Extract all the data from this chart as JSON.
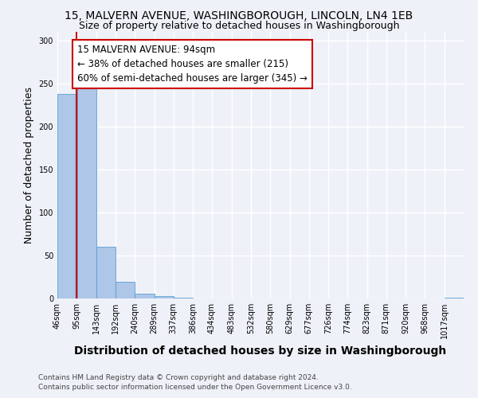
{
  "title": "15, MALVERN AVENUE, WASHINGBOROUGH, LINCOLN, LN4 1EB",
  "subtitle": "Size of property relative to detached houses in Washingborough",
  "xlabel": "Distribution of detached houses by size in Washingborough",
  "ylabel": "Number of detached properties",
  "bar_values": [
    238,
    244,
    60,
    19,
    6,
    3,
    1,
    0,
    0,
    0,
    0,
    0,
    0,
    0,
    0,
    0,
    0,
    0,
    0,
    0,
    1
  ],
  "bin_labels": [
    "46sqm",
    "95sqm",
    "143sqm",
    "192sqm",
    "240sqm",
    "289sqm",
    "337sqm",
    "386sqm",
    "434sqm",
    "483sqm",
    "532sqm",
    "580sqm",
    "629sqm",
    "677sqm",
    "726sqm",
    "774sqm",
    "823sqm",
    "871sqm",
    "920sqm",
    "968sqm",
    "1017sqm"
  ],
  "bin_edges": [
    46,
    95,
    143,
    192,
    240,
    289,
    337,
    386,
    434,
    483,
    532,
    580,
    629,
    677,
    726,
    774,
    823,
    871,
    920,
    968,
    1017,
    1066
  ],
  "property_size": 94,
  "bar_color": "#aec6e8",
  "bar_edge_color": "#5a9fd4",
  "red_line_x": 94,
  "annotation_line1": "15 MALVERN AVENUE: 94sqm",
  "annotation_line2": "← 38% of detached houses are smaller (215)",
  "annotation_line3": "60% of semi-detached houses are larger (345) →",
  "annotation_box_color": "#ffffff",
  "annotation_box_edge_color": "#cc0000",
  "ylim": [
    0,
    310
  ],
  "yticks": [
    0,
    50,
    100,
    150,
    200,
    250,
    300
  ],
  "footer_line1": "Contains HM Land Registry data © Crown copyright and database right 2024.",
  "footer_line2": "Contains public sector information licensed under the Open Government Licence v3.0.",
  "bg_color": "#eef2f8",
  "grid_color": "#ffffff",
  "title_fontsize": 10,
  "subtitle_fontsize": 9,
  "axis_label_fontsize": 9,
  "tick_fontsize": 7,
  "annotation_fontsize": 8.5,
  "footer_fontsize": 6.5
}
